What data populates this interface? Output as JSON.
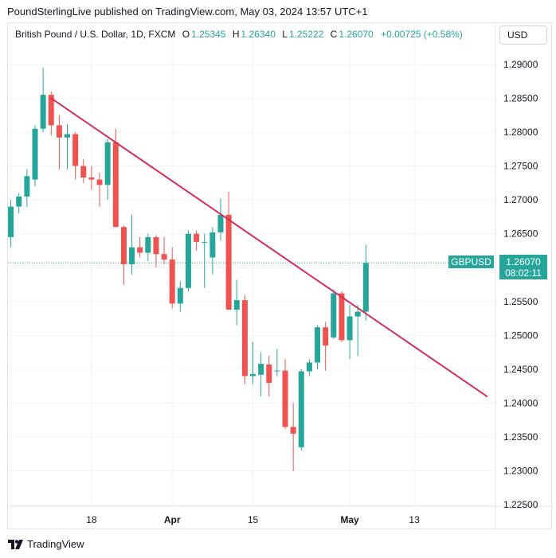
{
  "header": {
    "text": "PoundSterlingLive published on TradingView.com, May 03, 2024 13:57 UTC+1"
  },
  "legend": {
    "symbol": "British Pound / U.S. Dollar, 1D, FXCM",
    "o_label": "O",
    "o_value": "1.25345",
    "h_label": "H",
    "h_value": "1.26340",
    "l_label": "L",
    "l_value": "1.25222",
    "c_label": "C",
    "c_value": "1.26070",
    "change": "+0.00725 (+0.58%)"
  },
  "currency_button": "USD",
  "price_tag": {
    "symbol": "GBPUSD",
    "price": "1.26070",
    "countdown": "08:02:11"
  },
  "footer": {
    "brand": "TradingView"
  },
  "colors": {
    "up": "#26a69a",
    "down": "#ef5350",
    "trendline": "#d32f5c",
    "grid": "#f0f3fa"
  },
  "chart_data": {
    "type": "candlestick",
    "series_name": "GBPUSD",
    "ylim": [
      1.2215,
      1.2955
    ],
    "y_ticks": [
      "1.22500",
      "1.23000",
      "1.23500",
      "1.24000",
      "1.24500",
      "1.25000",
      "1.25500",
      "1.26000",
      "1.26500",
      "1.27000",
      "1.27500",
      "1.28000",
      "1.28500",
      "1.29000"
    ],
    "x_tick_labels": [
      {
        "label": "18",
        "index": 10
      },
      {
        "label": "Apr",
        "index": 20
      },
      {
        "label": "15",
        "index": 30
      },
      {
        "label": "May",
        "index": 42
      },
      {
        "label": "13",
        "index": 50
      }
    ],
    "last_price": 1.2607,
    "candles": [
      {
        "o": 1.2645,
        "h": 1.27,
        "l": 1.263,
        "c": 1.269
      },
      {
        "o": 1.269,
        "h": 1.271,
        "l": 1.268,
        "c": 1.2705
      },
      {
        "o": 1.2705,
        "h": 1.2745,
        "l": 1.269,
        "c": 1.2735
      },
      {
        "o": 1.273,
        "h": 1.281,
        "l": 1.272,
        "c": 1.2805
      },
      {
        "o": 1.2805,
        "h": 1.2895,
        "l": 1.28,
        "c": 1.2855
      },
      {
        "o": 1.2855,
        "h": 1.286,
        "l": 1.2795,
        "c": 1.281
      },
      {
        "o": 1.281,
        "h": 1.2825,
        "l": 1.2745,
        "c": 1.2792
      },
      {
        "o": 1.2792,
        "h": 1.2812,
        "l": 1.2745,
        "c": 1.2797
      },
      {
        "o": 1.2797,
        "h": 1.28,
        "l": 1.273,
        "c": 1.275
      },
      {
        "o": 1.275,
        "h": 1.276,
        "l": 1.2725,
        "c": 1.2733
      },
      {
        "o": 1.2733,
        "h": 1.275,
        "l": 1.2715,
        "c": 1.273
      },
      {
        "o": 1.273,
        "h": 1.274,
        "l": 1.269,
        "c": 1.2722
      },
      {
        "o": 1.2722,
        "h": 1.279,
        "l": 1.27,
        "c": 1.2785
      },
      {
        "o": 1.2785,
        "h": 1.2805,
        "l": 1.266,
        "c": 1.266
      },
      {
        "o": 1.266,
        "h": 1.2662,
        "l": 1.2575,
        "c": 1.2605
      },
      {
        "o": 1.2605,
        "h": 1.2678,
        "l": 1.259,
        "c": 1.263
      },
      {
        "o": 1.263,
        "h": 1.2645,
        "l": 1.2615,
        "c": 1.2622
      },
      {
        "o": 1.2622,
        "h": 1.265,
        "l": 1.261,
        "c": 1.2645
      },
      {
        "o": 1.2645,
        "h": 1.2648,
        "l": 1.26,
        "c": 1.262
      },
      {
        "o": 1.262,
        "h": 1.2645,
        "l": 1.2605,
        "c": 1.2612
      },
      {
        "o": 1.2612,
        "h": 1.263,
        "l": 1.254,
        "c": 1.2547
      },
      {
        "o": 1.2547,
        "h": 1.258,
        "l": 1.2535,
        "c": 1.257
      },
      {
        "o": 1.257,
        "h": 1.2655,
        "l": 1.2565,
        "c": 1.265
      },
      {
        "o": 1.265,
        "h": 1.2655,
        "l": 1.2625,
        "c": 1.2638
      },
      {
        "o": 1.2638,
        "h": 1.265,
        "l": 1.257,
        "c": 1.2638
      },
      {
        "o": 1.2615,
        "h": 1.266,
        "l": 1.259,
        "c": 1.2652
      },
      {
        "o": 1.2652,
        "h": 1.2702,
        "l": 1.264,
        "c": 1.2678
      },
      {
        "o": 1.2678,
        "h": 1.2712,
        "l": 1.254,
        "c": 1.2538
      },
      {
        "o": 1.2538,
        "h": 1.2582,
        "l": 1.2515,
        "c": 1.2552
      },
      {
        "o": 1.2552,
        "h": 1.256,
        "l": 1.2428,
        "c": 1.244
      },
      {
        "o": 1.244,
        "h": 1.249,
        "l": 1.2428,
        "c": 1.2443
      },
      {
        "o": 1.2442,
        "h": 1.2475,
        "l": 1.241,
        "c": 1.2458
      },
      {
        "o": 1.2457,
        "h": 1.247,
        "l": 1.241,
        "c": 1.243
      },
      {
        "o": 1.2448,
        "h": 1.248,
        "l": 1.244,
        "c": 1.2448
      },
      {
        "o": 1.2448,
        "h": 1.2465,
        "l": 1.2362,
        "c": 1.2365
      },
      {
        "o": 1.2365,
        "h": 1.24,
        "l": 1.23,
        "c": 1.2355
      },
      {
        "o": 1.2335,
        "h": 1.245,
        "l": 1.233,
        "c": 1.2447
      },
      {
        "o": 1.2447,
        "h": 1.2465,
        "l": 1.244,
        "c": 1.246
      },
      {
        "o": 1.246,
        "h": 1.2515,
        "l": 1.245,
        "c": 1.2512
      },
      {
        "o": 1.2512,
        "h": 1.252,
        "l": 1.2448,
        "c": 1.2485
      },
      {
        "o": 1.2497,
        "h": 1.2568,
        "l": 1.2495,
        "c": 1.2562
      },
      {
        "o": 1.2562,
        "h": 1.2565,
        "l": 1.249,
        "c": 1.2493
      },
      {
        "o": 1.2493,
        "h": 1.2545,
        "l": 1.2465,
        "c": 1.2528
      },
      {
        "o": 1.2528,
        "h": 1.2545,
        "l": 1.247,
        "c": 1.2535
      },
      {
        "o": 1.2535,
        "h": 1.2634,
        "l": 1.2522,
        "c": 1.2607
      }
    ],
    "trendline": {
      "start": {
        "index": 5,
        "price": 1.285
      },
      "end": {
        "index": 59,
        "price": 1.241
      }
    }
  }
}
